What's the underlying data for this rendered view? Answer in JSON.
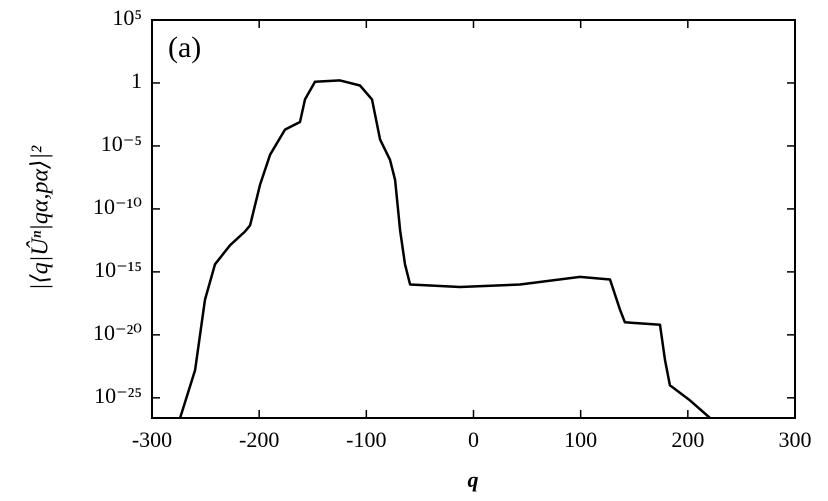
{
  "chart_data": {
    "type": "line",
    "annotation": "(a)",
    "x_label": "q",
    "y_label": "|⟨q|Ûⁿ|qα,pα⟩|²",
    "log_y": true,
    "color": "#000000",
    "xlim": [
      -300,
      300
    ],
    "xticks": [
      -300,
      -200,
      -100,
      0,
      100,
      200,
      300
    ],
    "ylim": [
      2.5e-27,
      100000
    ],
    "yticks": [
      {
        "value": 100000,
        "label": "10⁵"
      },
      1,
      {
        "value": 1e-05,
        "label": "10⁻⁵"
      },
      {
        "value": 1e-10,
        "label": "10⁻¹⁰"
      },
      {
        "value": 1e-15,
        "label": "10⁻¹⁵"
      },
      {
        "value": 1e-20,
        "label": "10⁻²⁰"
      },
      {
        "value": 1e-25,
        "label": "10⁻²⁵"
      }
    ],
    "series": [
      {
        "x": [
          -273.8,
          -259.8,
          -250.5,
          -241.2,
          -227.2,
          -213.2,
          -208.5,
          -199.2,
          -189.8,
          -175.9,
          -161.9,
          -157.2,
          -147.9,
          -124.6,
          -105.9,
          -94.7,
          -87.2,
          -77.9,
          -73.2,
          -68.5,
          -63.9,
          -59.2,
          -12.6,
          43.4,
          99.4,
          127.4,
          136.7,
          141.3,
          174.0,
          178.7,
          183.3,
          202.0,
          220.7
        ],
        "values": [
          2.5e-27,
          1.6e-23,
          6.3e-18,
          4e-15,
          1.3e-13,
          1.6e-12,
          5e-12,
          8e-09,
          2e-06,
          0.0002,
          0.0008,
          0.05,
          1.26,
          1.6,
          0.63,
          0.05,
          3.2e-05,
          8e-07,
          2e-08,
          2e-12,
          4e-15,
          1e-16,
          6.3e-17,
          1e-16,
          4e-16,
          2.5e-16,
          1e-18,
          1e-19,
          6.3e-20,
          1e-22,
          1e-24,
          6.3e-26,
          2.5e-27
        ]
      }
    ]
  }
}
